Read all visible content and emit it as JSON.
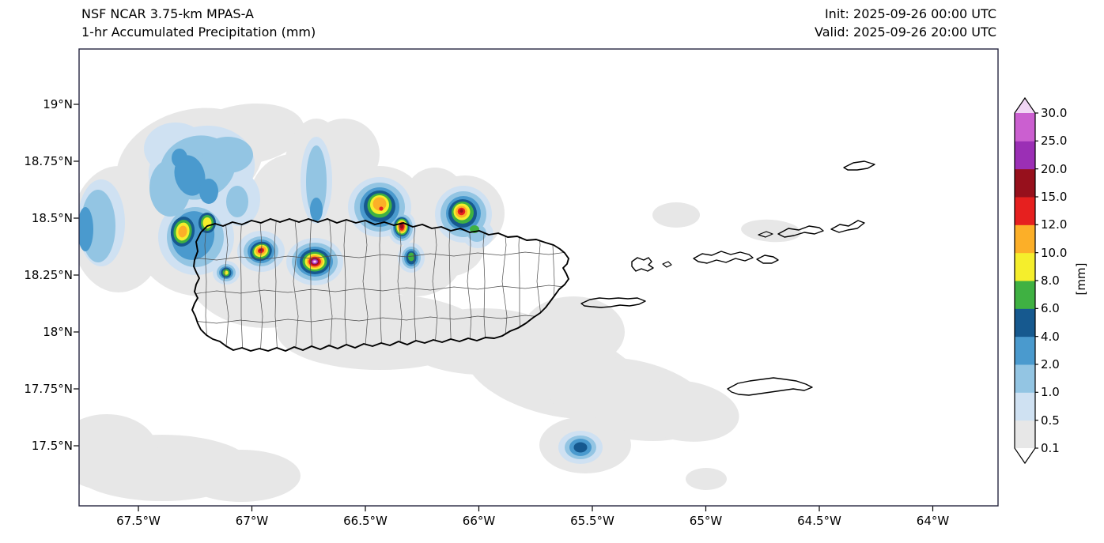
{
  "header": {
    "title_line1": "NSF NCAR 3.75-km MPAS-A",
    "title_line2": "1-hr Accumulated Precipitation (mm)",
    "init_label": "Init: 2025-09-26 00:00 UTC",
    "valid_label": "Valid: 2025-09-26 20:00 UTC"
  },
  "axes": {
    "x_ticks": [
      "67.5°W",
      "67°W",
      "66.5°W",
      "66°W",
      "65.5°W",
      "65°W",
      "64.5°W",
      "64°W"
    ],
    "y_ticks": [
      "19°N",
      "18.75°N",
      "18.5°N",
      "18.25°N",
      "18°N",
      "17.75°N",
      "17.5°N"
    ]
  },
  "colorbar": {
    "unit_label": "[mm]",
    "tick_labels": [
      "30.0",
      "25.0",
      "20.0",
      "15.0",
      "12.0",
      "10.0",
      "8.0",
      "6.0",
      "4.0",
      "2.0",
      "1.0",
      "0.5",
      "0.1"
    ],
    "colors_low_to_high": [
      "#e7e7e7",
      "#cfe1f2",
      "#93c5e3",
      "#4a9ace",
      "#16598f",
      "#3fb142",
      "#f5ee2c",
      "#fcaf28",
      "#e6201f",
      "#97101c",
      "#9b2fb5",
      "#cb5fd0"
    ],
    "over_color": "#f1d6f5",
    "under_color": "#ffffff"
  },
  "chart_data": {
    "type": "heatmap",
    "title": "1-hr Accumulated Precipitation (mm)",
    "model": "NSF NCAR 3.75-km MPAS-A",
    "init_time": "2025-09-26 00:00 UTC",
    "valid_time": "2025-09-26 20:00 UTC",
    "units": "mm",
    "region": "Puerto Rico and U.S. / British Virgin Islands",
    "lon_range_deg_w": [
      67.76,
      63.86
    ],
    "lat_range_deg_n": [
      17.26,
      19.24
    ],
    "x_tick_values_deg_w": [
      67.5,
      67.0,
      66.5,
      66.0,
      65.5,
      65.0,
      64.5,
      64.0
    ],
    "y_tick_values_deg_n": [
      19.0,
      18.75,
      18.5,
      18.25,
      18.0,
      17.75,
      17.5
    ],
    "contour_levels_mm": [
      0.1,
      0.5,
      1,
      2,
      4,
      6,
      8,
      10,
      12,
      15,
      20,
      25,
      30
    ],
    "colorbar_position": "right",
    "grid": false,
    "precip_cells": [
      {
        "lon_w": 67.3,
        "lat_n": 18.44,
        "max_mm_band": "10-12",
        "location": "offshore northwest of Puerto Rico"
      },
      {
        "lon_w": 67.2,
        "lat_n": 18.48,
        "max_mm_band": "8-10",
        "location": "offshore northwest of Puerto Rico"
      },
      {
        "lon_w": 67.11,
        "lat_n": 18.26,
        "max_mm_band": "8-10",
        "location": "west coast of Puerto Rico"
      },
      {
        "lon_w": 66.96,
        "lat_n": 18.36,
        "max_mm_band": "15-20",
        "location": "northwest interior of Puerto Rico"
      },
      {
        "lon_w": 66.72,
        "lat_n": 18.31,
        "max_mm_band": ">30",
        "location": "west-central interior of Puerto Rico (strongest cell)"
      },
      {
        "lon_w": 66.44,
        "lat_n": 18.56,
        "max_mm_band": "12-15",
        "location": "offshore north coast"
      },
      {
        "lon_w": 66.34,
        "lat_n": 18.48,
        "max_mm_band": "15-20",
        "location": "north coast near Arecibo/Barceloneta"
      },
      {
        "lon_w": 66.3,
        "lat_n": 18.33,
        "max_mm_band": "6-8",
        "location": "north-central Puerto Rico"
      },
      {
        "lon_w": 66.08,
        "lat_n": 18.53,
        "max_mm_band": "15-20",
        "location": "offshore north of Puerto Rico"
      },
      {
        "lon_w": 65.56,
        "lat_n": 17.49,
        "max_mm_band": "4-6",
        "location": "open water south of Vieques"
      }
    ],
    "light_precip_regions": [
      "broad 0.1-0.5 mm area over and west of Puerto Rico",
      "0.5-4 mm banded area northwest of Puerto Rico (upper left)",
      "narrow 0.5-2 mm north-south streak near 66.7°W, 18.7-19°N",
      "0.1-0.5 mm wedge extending southeast from Puerto Rico toward St. Croix",
      "0.1-0.5 mm patches in the far southwest corner and along the west edge"
    ]
  }
}
